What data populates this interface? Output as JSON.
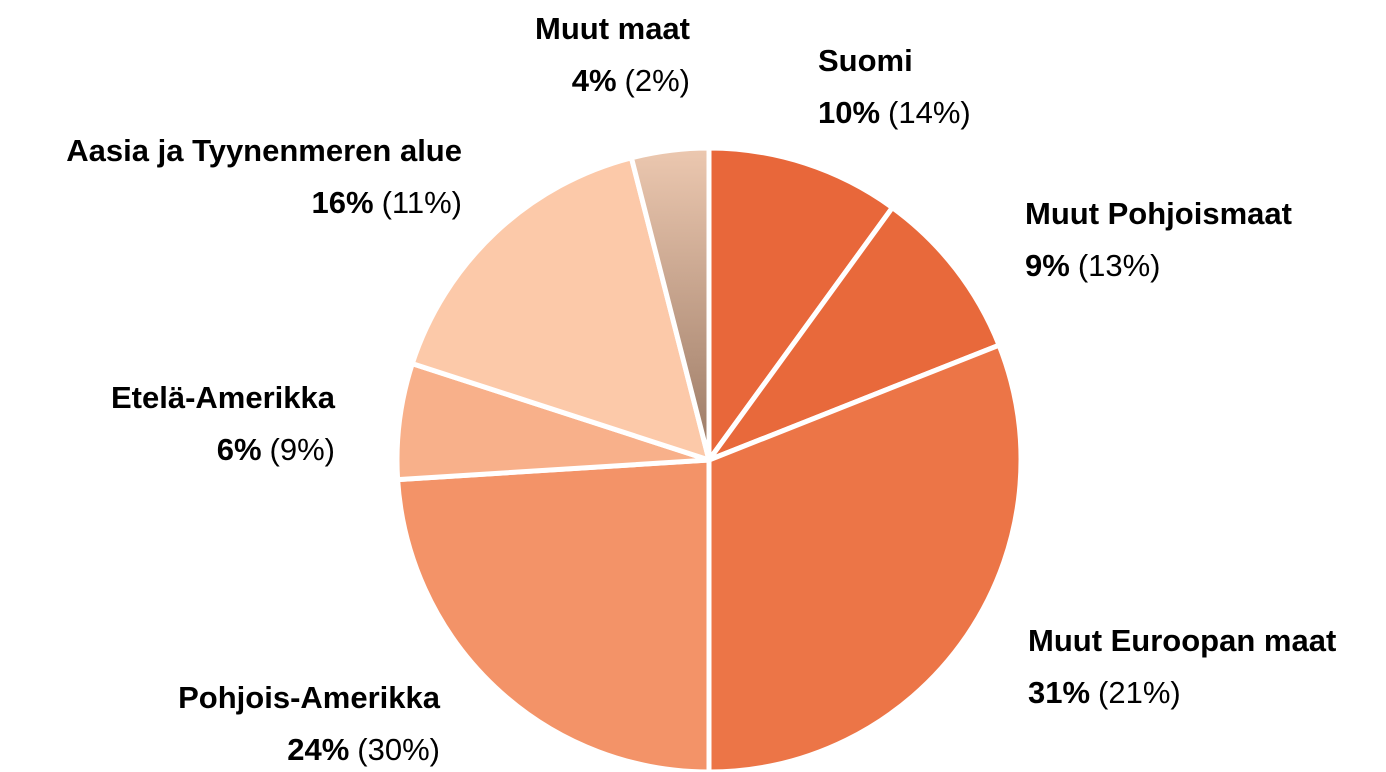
{
  "chart_data": {
    "type": "pie",
    "categories": [
      "Suomi",
      "Muut Pohjoismaat",
      "Muut Euroopan maat",
      "Pohjois-Amerikka",
      "Etelä-Amerikka",
      "Aasia ja Tyynenmeren alue",
      "Muut maat"
    ],
    "values": [
      10,
      9,
      31,
      24,
      6,
      16,
      4
    ],
    "value_labels": [
      "10%",
      "9%",
      "31%",
      "24%",
      "6%",
      "16%",
      "4%"
    ],
    "comparison_labels": [
      "(14%)",
      "(13%)",
      "(21%)",
      "(30%)",
      "(9%)",
      "(11%)",
      "(2%)"
    ],
    "colors": [
      "#e8673a",
      "#e8693b",
      "#ec7547",
      "#f39368",
      "#f8b08a",
      "#fcc9a9",
      "#c7a18a"
    ]
  }
}
